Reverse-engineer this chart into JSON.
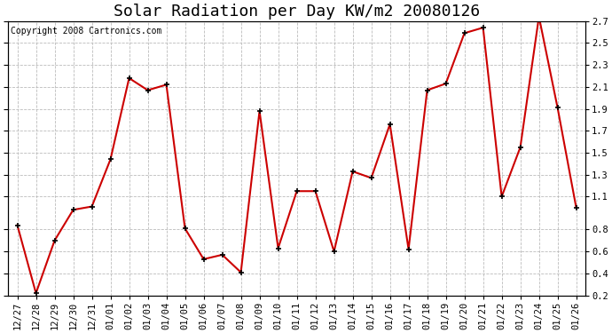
{
  "title": "Solar Radiation per Day KW/m2 20080126",
  "copyright": "Copyright 2008 Cartronics.com",
  "labels": [
    "12/27",
    "12/28",
    "12/29",
    "12/30",
    "12/31",
    "01/01",
    "01/02",
    "01/03",
    "01/04",
    "01/05",
    "01/06",
    "01/07",
    "01/08",
    "01/09",
    "01/10",
    "01/11",
    "01/12",
    "01/13",
    "01/14",
    "01/15",
    "01/16",
    "01/17",
    "01/18",
    "01/19",
    "01/20",
    "01/21",
    "01/22",
    "01/23",
    "01/24",
    "01/25",
    "01/26"
  ],
  "values": [
    0.84,
    0.22,
    0.7,
    0.98,
    1.01,
    1.44,
    2.18,
    2.07,
    2.12,
    0.81,
    0.53,
    0.57,
    0.41,
    1.88,
    0.63,
    1.15,
    1.15,
    0.6,
    1.33,
    1.27,
    1.76,
    0.62,
    2.07,
    2.13,
    2.59,
    2.64,
    1.1,
    1.55,
    2.74,
    1.91,
    1.0
  ],
  "line_color": "#cc0000",
  "marker_color": "#000000",
  "marker_size": 5,
  "ylim": [
    0.2,
    2.7
  ],
  "yticks": [
    0.2,
    0.4,
    0.6,
    0.8,
    1.1,
    1.3,
    1.5,
    1.7,
    1.9,
    2.1,
    2.3,
    2.5,
    2.7
  ],
  "background_color": "#ffffff",
  "grid_color": "#bbbbbb",
  "title_fontsize": 13,
  "copyright_fontsize": 7,
  "tick_fontsize": 7.5
}
